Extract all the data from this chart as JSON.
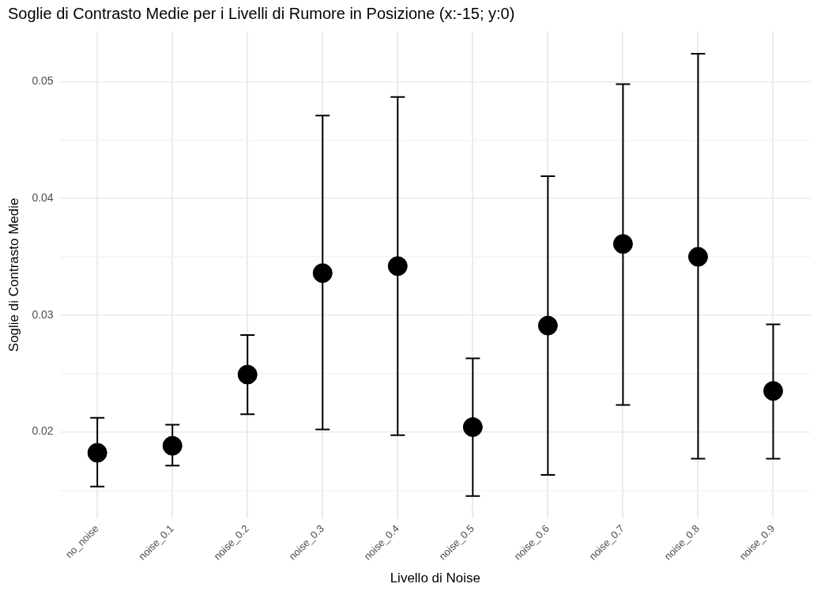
{
  "chart_data": {
    "type": "scatter",
    "title": "Soglie di Contrasto Medie per i Livelli di Rumore in Posizione (x:-15; y:0)",
    "xlabel": "Livello di Noise",
    "ylabel": "Soglie di Contrasto Medie",
    "categories": [
      "no_noise",
      "noise_0.1",
      "noise_0.2",
      "noise_0.3",
      "noise_0.4",
      "noise_0.5",
      "noise_0.6",
      "noise_0.7",
      "noise_0.8",
      "noise_0.9"
    ],
    "series": [
      {
        "color": "#000000",
        "values": [
          0.0182,
          0.0188,
          0.0249,
          0.0336,
          0.0342,
          0.0204,
          0.0291,
          0.0361,
          0.035,
          0.0235
        ],
        "errors": [
          [
            0.0153,
            0.0212
          ],
          [
            0.0171,
            0.0206
          ],
          [
            0.0215,
            0.0283
          ],
          [
            0.0202,
            0.0471
          ],
          [
            0.0197,
            0.0487
          ],
          [
            0.0145,
            0.0263
          ],
          [
            0.0163,
            0.0419
          ],
          [
            0.0223,
            0.0498
          ],
          [
            0.0177,
            0.0524
          ],
          [
            0.0177,
            0.0292
          ]
        ]
      }
    ],
    "ylim": [
      0.0126,
      0.0543
    ],
    "yticks": [
      {
        "value": 0.015,
        "label": null
      },
      0.02,
      {
        "value": 0.025,
        "label": null
      },
      0.03,
      {
        "value": 0.035,
        "label": null
      },
      0.04,
      {
        "value": 0.045,
        "label": null
      },
      0.05
    ],
    "grid": true,
    "legend": false,
    "marker": "circle"
  }
}
